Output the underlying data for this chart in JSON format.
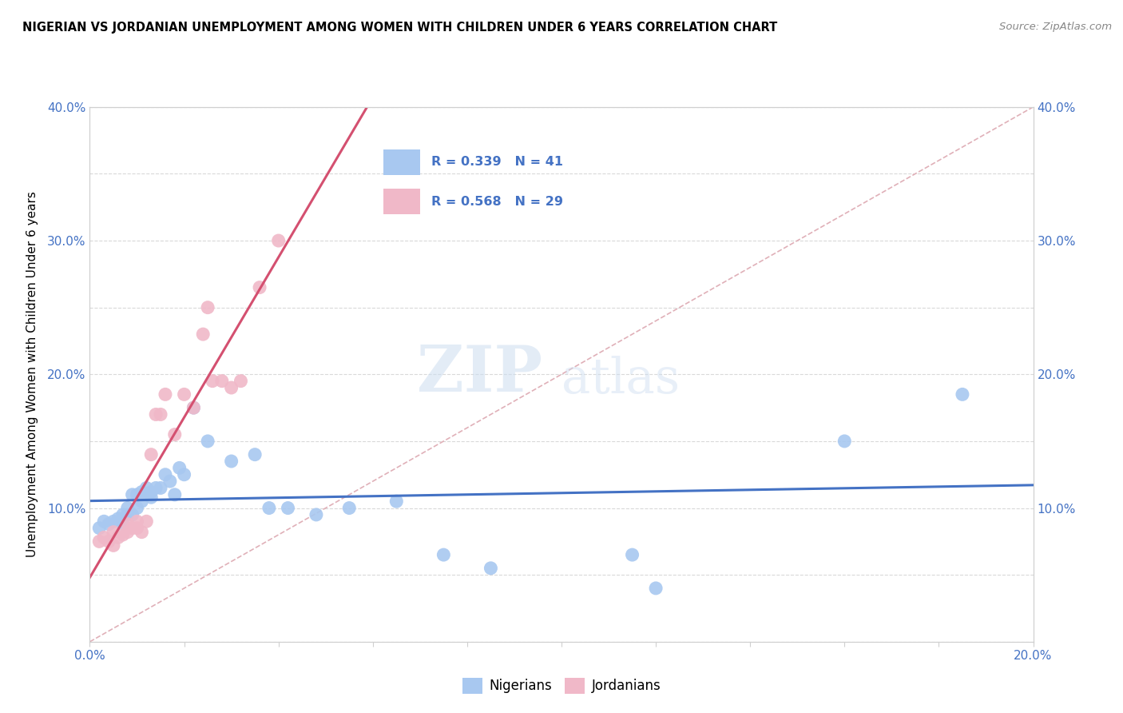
{
  "title": "NIGERIAN VS JORDANIAN UNEMPLOYMENT AMONG WOMEN WITH CHILDREN UNDER 6 YEARS CORRELATION CHART",
  "source": "Source: ZipAtlas.com",
  "ylabel": "Unemployment Among Women with Children Under 6 years",
  "xlim": [
    0.0,
    0.2
  ],
  "ylim": [
    0.0,
    0.4
  ],
  "xticks": [
    0.0,
    0.02,
    0.04,
    0.06,
    0.08,
    0.1,
    0.12,
    0.14,
    0.16,
    0.18,
    0.2
  ],
  "yticks": [
    0.0,
    0.05,
    0.1,
    0.15,
    0.2,
    0.25,
    0.3,
    0.35,
    0.4
  ],
  "xtick_labels": [
    "0.0%",
    "",
    "",
    "",
    "",
    "",
    "",
    "",
    "",
    "",
    "20.0%"
  ],
  "ytick_labels_left": [
    "",
    "",
    "10.0%",
    "",
    "20.0%",
    "",
    "30.0%",
    "",
    "40.0%"
  ],
  "ytick_labels_right": [
    "",
    "",
    "10.0%",
    "",
    "20.0%",
    "",
    "30.0%",
    "",
    "40.0%"
  ],
  "watermark_zip": "ZIP",
  "watermark_atlas": "atlas",
  "nigerian_R": "0.339",
  "nigerian_N": "41",
  "jordanian_R": "0.568",
  "jordanian_N": "29",
  "nigerian_color": "#a8c8f0",
  "jordanian_color": "#f0b8c8",
  "nigerian_line_color": "#4472c4",
  "jordanian_line_color": "#d45070",
  "diag_color": "#e0b0b8",
  "background_color": "#ffffff",
  "legend_border_color": "#b8ccd8",
  "nigerian_scatter_x": [
    0.002,
    0.003,
    0.004,
    0.005,
    0.006,
    0.007,
    0.007,
    0.008,
    0.008,
    0.009,
    0.009,
    0.01,
    0.01,
    0.011,
    0.011,
    0.012,
    0.012,
    0.013,
    0.013,
    0.014,
    0.015,
    0.016,
    0.017,
    0.018,
    0.019,
    0.02,
    0.022,
    0.025,
    0.03,
    0.035,
    0.038,
    0.042,
    0.048,
    0.055,
    0.065,
    0.075,
    0.085,
    0.115,
    0.12,
    0.16,
    0.185
  ],
  "nigerian_scatter_y": [
    0.085,
    0.09,
    0.088,
    0.09,
    0.092,
    0.088,
    0.095,
    0.095,
    0.1,
    0.095,
    0.11,
    0.1,
    0.11,
    0.105,
    0.112,
    0.11,
    0.115,
    0.108,
    0.112,
    0.115,
    0.115,
    0.125,
    0.12,
    0.11,
    0.13,
    0.125,
    0.175,
    0.15,
    0.135,
    0.14,
    0.1,
    0.1,
    0.095,
    0.1,
    0.105,
    0.065,
    0.055,
    0.065,
    0.04,
    0.15,
    0.185
  ],
  "jordanian_scatter_x": [
    0.002,
    0.003,
    0.004,
    0.005,
    0.005,
    0.006,
    0.007,
    0.008,
    0.008,
    0.009,
    0.01,
    0.01,
    0.011,
    0.012,
    0.013,
    0.014,
    0.015,
    0.016,
    0.018,
    0.02,
    0.022,
    0.024,
    0.025,
    0.026,
    0.028,
    0.03,
    0.032,
    0.036,
    0.04
  ],
  "jordanian_scatter_y": [
    0.075,
    0.078,
    0.075,
    0.072,
    0.082,
    0.078,
    0.08,
    0.082,
    0.088,
    0.085,
    0.085,
    0.09,
    0.082,
    0.09,
    0.14,
    0.17,
    0.17,
    0.185,
    0.155,
    0.185,
    0.175,
    0.23,
    0.25,
    0.195,
    0.195,
    0.19,
    0.195,
    0.265,
    0.3
  ]
}
